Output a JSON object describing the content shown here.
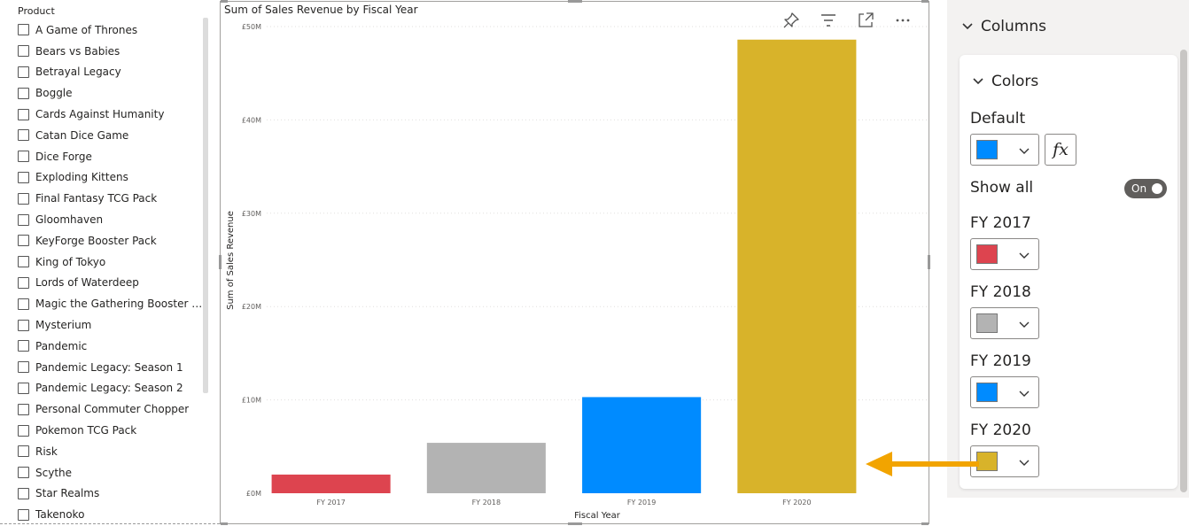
{
  "slicer": {
    "title": "Product",
    "items": [
      "A Game of Thrones",
      "Bears vs Babies",
      "Betrayal Legacy",
      "Boggle",
      "Cards Against Humanity",
      "Catan Dice Game",
      "Dice Forge",
      "Exploding Kittens",
      "Final Fantasy TCG Pack",
      "Gloomhaven",
      "KeyForge Booster Pack",
      "King of Tokyo",
      "Lords of Waterdeep",
      "Magic the Gathering Booster Pa...",
      "Mysterium",
      "Pandemic",
      "Pandemic Legacy: Season 1",
      "Pandemic Legacy: Season 2",
      "Personal Commuter Chopper",
      "Pokemon TCG Pack",
      "Risk",
      "Scythe",
      "Star Realms",
      "Takenoko"
    ]
  },
  "visual": {
    "header_icons": [
      "pin-icon",
      "filter-icon",
      "focus-mode-icon",
      "more-options-icon"
    ]
  },
  "chart_data": {
    "type": "bar",
    "title": "Sum of Sales Revenue by Fiscal Year",
    "xlabel": "Fiscal Year",
    "ylabel": "Sum of Sales Revenue",
    "categories": [
      "FY 2017",
      "FY 2018",
      "FY 2019",
      "FY 2020"
    ],
    "values": [
      2.0,
      5.4,
      10.3,
      48.6
    ],
    "colors": [
      "#DD444F",
      "#B3B3B3",
      "#008BFF",
      "#D8B32A"
    ],
    "ylim": [
      0,
      50
    ],
    "yticks": [
      0,
      10,
      20,
      30,
      40,
      50
    ],
    "ytick_labels": [
      "£0M",
      "£10M",
      "£20M",
      "£30M",
      "£40M",
      "£50M"
    ],
    "grid": true,
    "legend": "none"
  },
  "format_pane": {
    "section_title": "Columns",
    "card_title": "Colors",
    "default_label": "Default",
    "default_color": "#008BFF",
    "fx_label": "fx",
    "show_all_label": "Show all",
    "toggle_label": "On",
    "entries": [
      {
        "label": "FY 2017",
        "color": "#DD444F"
      },
      {
        "label": "FY 2018",
        "color": "#B3B3B3"
      },
      {
        "label": "FY 2019",
        "color": "#008BFF"
      },
      {
        "label": "FY 2020",
        "color": "#D8B32A"
      }
    ]
  },
  "annotation": {
    "arrow_color": "#F2A400"
  }
}
